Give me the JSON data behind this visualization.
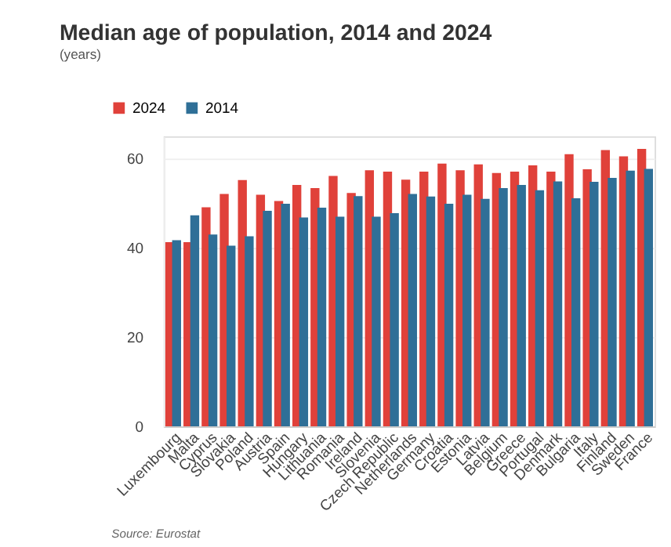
{
  "chart_data": {
    "type": "bar",
    "title": "Median age of population, 2014 and 2024",
    "subtitle": "(years)",
    "categories": [
      "Luxembourg",
      "Malta",
      "Cyprus",
      "Slovakia",
      "Poland",
      "Austria",
      "Spain",
      "Hungary",
      "Lithuania",
      "Romania",
      "Ireland",
      "Slovenia",
      "Czech Republic",
      "Netherlands",
      "Germany",
      "Croatia",
      "Estonia",
      "Latvia",
      "Belgium",
      "Greece",
      "Portugal",
      "Denmark",
      "Bulgaria",
      "Italy",
      "Finland",
      "Sweden",
      "France"
    ],
    "series": [
      {
        "name": "2024",
        "color": "#e0413a",
        "values": [
          41.3,
          41.3,
          49.1,
          52.1,
          55.2,
          51.9,
          50.5,
          54.1,
          53.4,
          56.1,
          52.3,
          57.4,
          57.1,
          55.3,
          57.1,
          58.9,
          57.4,
          58.7,
          56.8,
          57.1,
          58.5,
          57.1,
          61.0,
          57.6,
          61.9,
          60.5,
          62.2
        ]
      },
      {
        "name": "2014",
        "color": "#2f6f97",
        "values": [
          41.7,
          47.3,
          43.0,
          40.5,
          42.6,
          48.3,
          49.9,
          46.8,
          49.0,
          47.0,
          51.6,
          47.0,
          47.8,
          52.1,
          51.5,
          49.9,
          51.9,
          51.0,
          53.4,
          54.1,
          52.9,
          54.9,
          51.1,
          54.8,
          55.7,
          57.3,
          57.7
        ]
      }
    ],
    "ylim": [
      0,
      65
    ],
    "yticks": [
      0,
      20,
      40,
      60
    ],
    "grid": "y",
    "legend": "top left",
    "annotations": [
      "Source: Eurostat"
    ]
  }
}
